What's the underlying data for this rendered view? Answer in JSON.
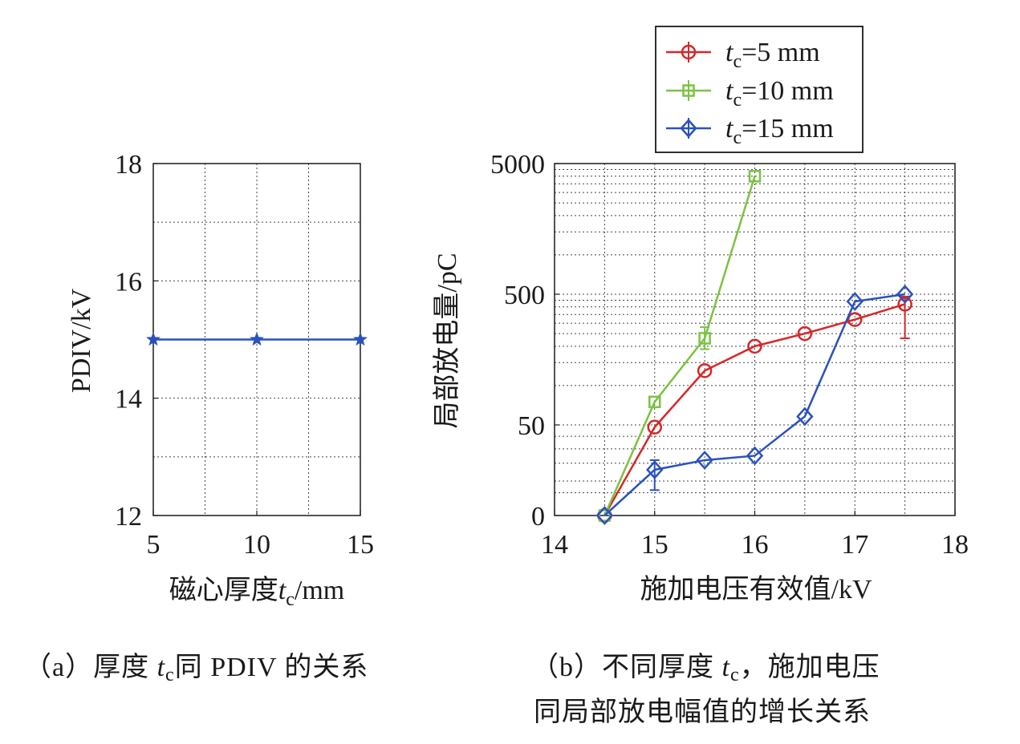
{
  "chart_data": [
    {
      "type": "line",
      "panel": "(a)",
      "title": "",
      "xlabel_prefix": "磁心厚度",
      "xlabel_var": "t",
      "xlabel_sub": "c",
      "xlabel_suffix": "/mm",
      "ylabel": "PDIV/kV",
      "x_ticks": [
        "5",
        "10",
        "15"
      ],
      "y_ticks": [
        "12",
        "14",
        "16",
        "18"
      ],
      "xlim": [
        5,
        15
      ],
      "ylim": [
        12,
        18
      ],
      "grid": true,
      "series": [
        {
          "color": "#2a52be",
          "marker": "star",
          "x": [
            5,
            10,
            15
          ],
          "y": [
            15,
            15,
            15
          ]
        }
      ],
      "caption": {
        "pre": "（a）厚度 ",
        "var": "t",
        "sub": "c",
        "post": "同 PDIV 的关系"
      }
    },
    {
      "type": "line",
      "panel": "(b)",
      "title": "",
      "xlabel": "施加电压有效值/kV",
      "ylabel": "局部放电量/pC",
      "x_ticks": [
        "14",
        "15",
        "16",
        "17",
        "18"
      ],
      "y_ticks": [
        "0",
        "50",
        "500",
        "5000"
      ],
      "xlim": [
        14,
        18
      ],
      "ylim": [
        0,
        5000
      ],
      "y_scale": "log-like",
      "grid": true,
      "legend_position": "top-right-outside",
      "series": [
        {
          "var": "t",
          "sub": "c",
          "value": "=5 mm",
          "color": "#d62728",
          "marker": "circle",
          "x": [
            14.5,
            15,
            15.5,
            16,
            16.5,
            17,
            17.5
          ],
          "y": [
            0,
            48,
            130,
            200,
            250,
            320,
            420
          ],
          "err_low": [
            null,
            null,
            null,
            null,
            null,
            null,
            230
          ],
          "err_high": [
            null,
            null,
            null,
            null,
            null,
            null,
            480
          ]
        },
        {
          "var": "t",
          "sub": "c",
          "value": "=10 mm",
          "color": "#7cc242",
          "marker": "square",
          "x": [
            14.5,
            15,
            15.5,
            16
          ],
          "y": [
            0,
            75,
            230,
            4000
          ],
          "err_low": [
            null,
            null,
            190,
            null
          ],
          "err_high": [
            null,
            null,
            280,
            null
          ]
        },
        {
          "var": "t",
          "sub": "c",
          "value": "=15 mm",
          "color": "#2a52be",
          "marker": "diamond",
          "x": [
            14.5,
            15,
            15.5,
            16,
            16.5,
            17,
            17.5
          ],
          "y": [
            0,
            16,
            22,
            25,
            58,
            440,
            500
          ],
          "err_low": [
            null,
            6,
            null,
            null,
            null,
            null,
            null
          ],
          "err_high": [
            null,
            22,
            null,
            null,
            null,
            null,
            null
          ]
        }
      ],
      "caption_line1": {
        "pre": "（b）不同厚度 ",
        "var": "t",
        "sub": "c",
        "post": "，施加电压"
      },
      "caption_line2": "同局部放电幅值的增长关系"
    }
  ]
}
